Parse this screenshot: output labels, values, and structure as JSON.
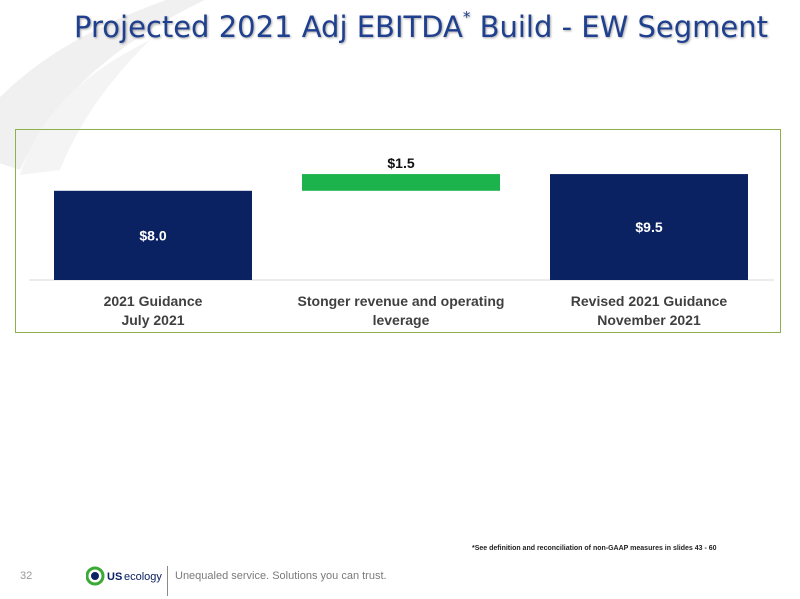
{
  "slide": {
    "title_main": "Projected 2021 Adj EBITDA",
    "title_sup": "*",
    "title_rest": " Build - EW Segment",
    "page_number": "32",
    "footnote": "*See definition and reconciliation of non-GAAP measures in slides 43 - 60",
    "logo_us": "US",
    "logo_ecology": "ecology",
    "tagline": "Unequaled service. Solutions you can trust."
  },
  "colors": {
    "title": "#1f3f8f",
    "bar_total": "#0b2262",
    "bar_increase": "#1db34c",
    "frame": "#8db04d",
    "logo_green": "#3aaa35",
    "logo_navy": "#0b2262"
  },
  "chart_data": {
    "type": "bar",
    "subtype": "waterfall",
    "categories": [
      [
        "2021 Guidance",
        "July 2021"
      ],
      [
        "Stonger revenue and operating",
        "leverage"
      ],
      [
        "Revised 2021 Guidance",
        "November 2021"
      ]
    ],
    "bars": [
      {
        "kind": "total",
        "base": 0,
        "value": 8.0,
        "label": "$8.0"
      },
      {
        "kind": "increase",
        "base": 8.0,
        "value": 1.5,
        "label": "$1.5"
      },
      {
        "kind": "total",
        "base": 0,
        "value": 9.5,
        "label": "$9.5"
      }
    ],
    "ylim": [
      0,
      10
    ],
    "grid": false,
    "legend": "none",
    "title": "",
    "xlabel": "",
    "ylabel": ""
  }
}
